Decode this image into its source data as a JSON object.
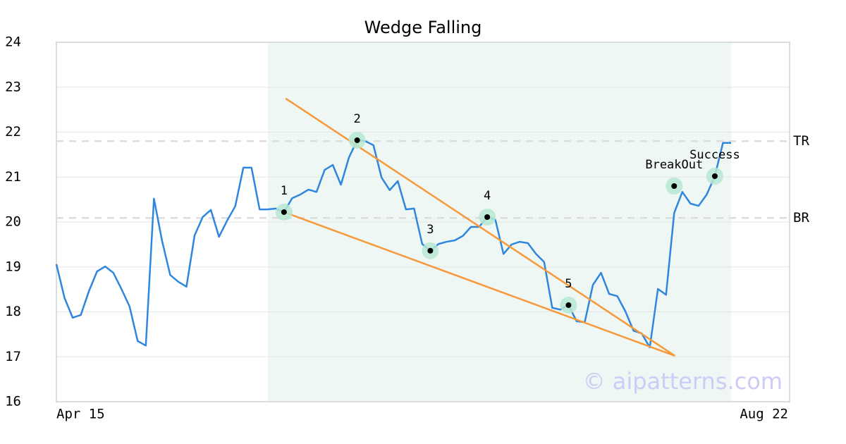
{
  "chart_data": {
    "type": "line",
    "title": "Wedge Falling",
    "watermark": "© aipatterns.com",
    "categories": [
      "Apr 15",
      null,
      null,
      null,
      null,
      null,
      null,
      null,
      null,
      null,
      null,
      null,
      null,
      null,
      null,
      null,
      null,
      null,
      null,
      null,
      null,
      null,
      null,
      null,
      null,
      null,
      null,
      null,
      null,
      null,
      null,
      null,
      null,
      null,
      null,
      null,
      null,
      null,
      null,
      null,
      null,
      null,
      null,
      null,
      null,
      null,
      null,
      null,
      null,
      null,
      null,
      null,
      null,
      null,
      null,
      null,
      null,
      null,
      null,
      null,
      null,
      null,
      null,
      null,
      null,
      null,
      null,
      null,
      null,
      null,
      null,
      null,
      null,
      null,
      null,
      null,
      null,
      null,
      null,
      null,
      null,
      null,
      null,
      "Aug 22"
    ],
    "series": [
      {
        "color": "#2f86de",
        "values": [
          19.06,
          18.31,
          17.87,
          17.93,
          18.46,
          18.9,
          19.01,
          18.87,
          18.51,
          18.12,
          17.35,
          17.25,
          20.52,
          19.58,
          18.82,
          18.67,
          18.56,
          19.7,
          20.11,
          20.27,
          19.67,
          20.03,
          20.35,
          21.21,
          21.21,
          20.28,
          20.28,
          20.3,
          20.22,
          20.53,
          20.61,
          20.72,
          20.67,
          21.16,
          21.27,
          20.83,
          21.44,
          21.82,
          21.8,
          21.71,
          20.99,
          20.71,
          20.91,
          20.28,
          20.3,
          19.51,
          19.36,
          19.51,
          19.56,
          19.59,
          19.69,
          19.89,
          19.89,
          20.11,
          20.05,
          19.29,
          19.5,
          19.56,
          19.53,
          19.29,
          19.11,
          18.09,
          18.05,
          18.15,
          17.79,
          17.77,
          18.6,
          18.87,
          18.4,
          18.35,
          18.01,
          17.58,
          17.52,
          17.21,
          18.51,
          18.38,
          20.2,
          20.67,
          20.41,
          20.36,
          20.61,
          21.02,
          21.76,
          21.76
        ]
      }
    ],
    "ylim": [
      16,
      24
    ],
    "yticks": [
      16,
      17,
      18,
      19,
      20,
      21,
      22,
      23,
      24
    ],
    "grid": true,
    "shaded_range": {
      "from": 26,
      "to": 83,
      "color": "#eef7f3"
    },
    "trendlines": [
      {
        "color": "#f7993a",
        "x": [
          28.2,
          76.1
        ],
        "y": [
          22.75,
          17.02
        ]
      },
      {
        "color": "#f7993a",
        "x": [
          28,
          76.1
        ],
        "y": [
          20.22,
          17.02
        ]
      }
    ],
    "levels": [
      {
        "label": "TR",
        "value": 21.8
      },
      {
        "label": "BR",
        "value": 20.09
      }
    ],
    "annotations": [
      {
        "label": "1",
        "x": 28,
        "y": 20.22
      },
      {
        "label": "2",
        "x": 37,
        "y": 21.82
      },
      {
        "label": "3",
        "x": 46,
        "y": 19.36
      },
      {
        "label": "4",
        "x": 53,
        "y": 20.11
      },
      {
        "label": "5",
        "x": 63,
        "y": 18.15
      },
      {
        "label": "BreakOut",
        "x": 76,
        "y": 20.8
      },
      {
        "label": "Success",
        "x": 81,
        "y": 21.02
      }
    ]
  }
}
